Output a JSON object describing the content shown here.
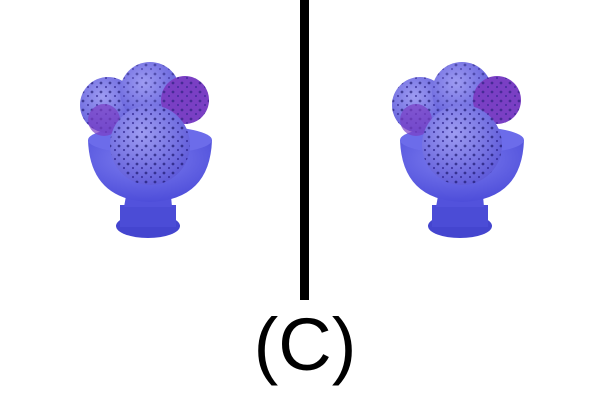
{
  "caption": "(C)",
  "panels": [
    {
      "depicts": "ice-cream-sundae-icon"
    },
    {
      "depicts": "ice-cream-sundae-icon"
    }
  ],
  "colors": {
    "background": "#ffffff",
    "divider": "#000000",
    "tint": "#5b5ce8",
    "sprinkles": "#1d1870",
    "accent_purple": "#7a3fc4"
  }
}
